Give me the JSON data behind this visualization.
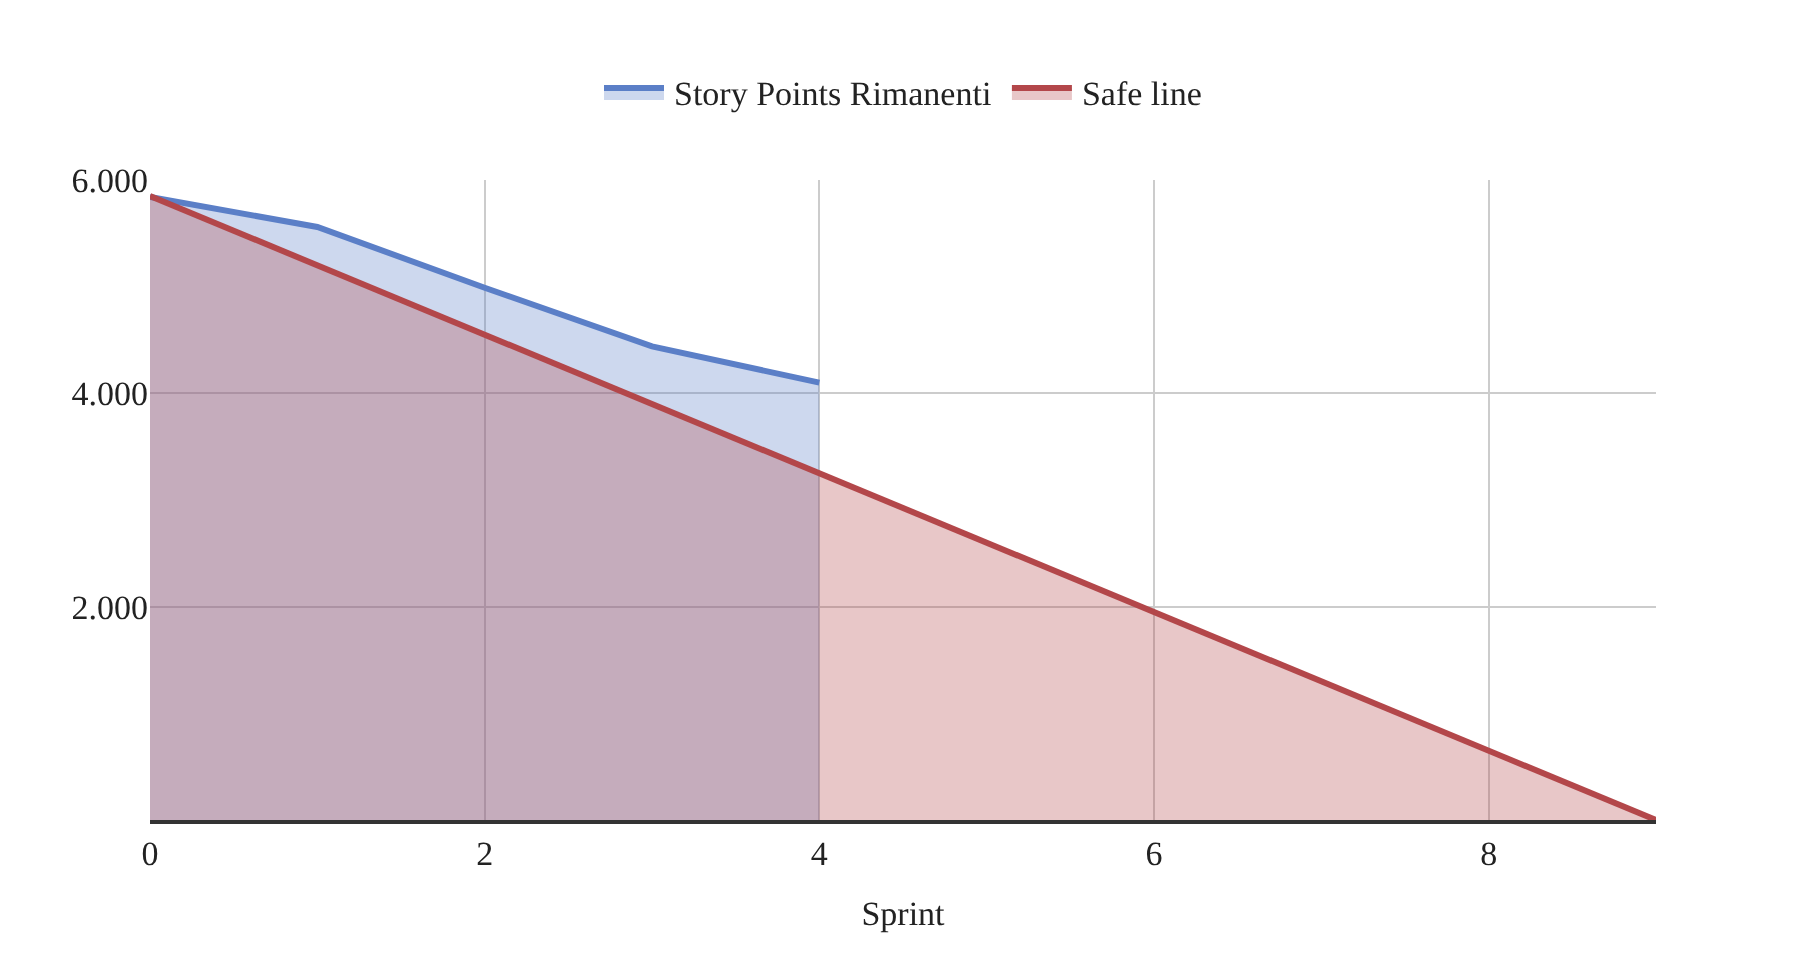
{
  "chart_data": {
    "type": "area",
    "xlabel": "Sprint",
    "legend": "top",
    "grid": true,
    "xlim": [
      0,
      9
    ],
    "ylim": [
      0,
      6000
    ],
    "xticks": [
      0,
      2,
      4,
      6,
      8
    ],
    "yticks": [
      {
        "value": 2000,
        "label": "2.000"
      },
      {
        "value": 4000,
        "label": "4.000"
      },
      {
        "value": 6000,
        "label": "6.000"
      }
    ],
    "series": [
      {
        "name": "Story Points Rimanenti",
        "color": "#5b7fc7",
        "x": [
          0,
          1,
          2,
          3,
          4
        ],
        "values": [
          5840,
          5560,
          4990,
          4440,
          4100
        ]
      },
      {
        "name": "Safe line",
        "color": "#b3474a",
        "x": [
          0,
          9
        ],
        "values": [
          5850,
          0
        ]
      }
    ]
  }
}
